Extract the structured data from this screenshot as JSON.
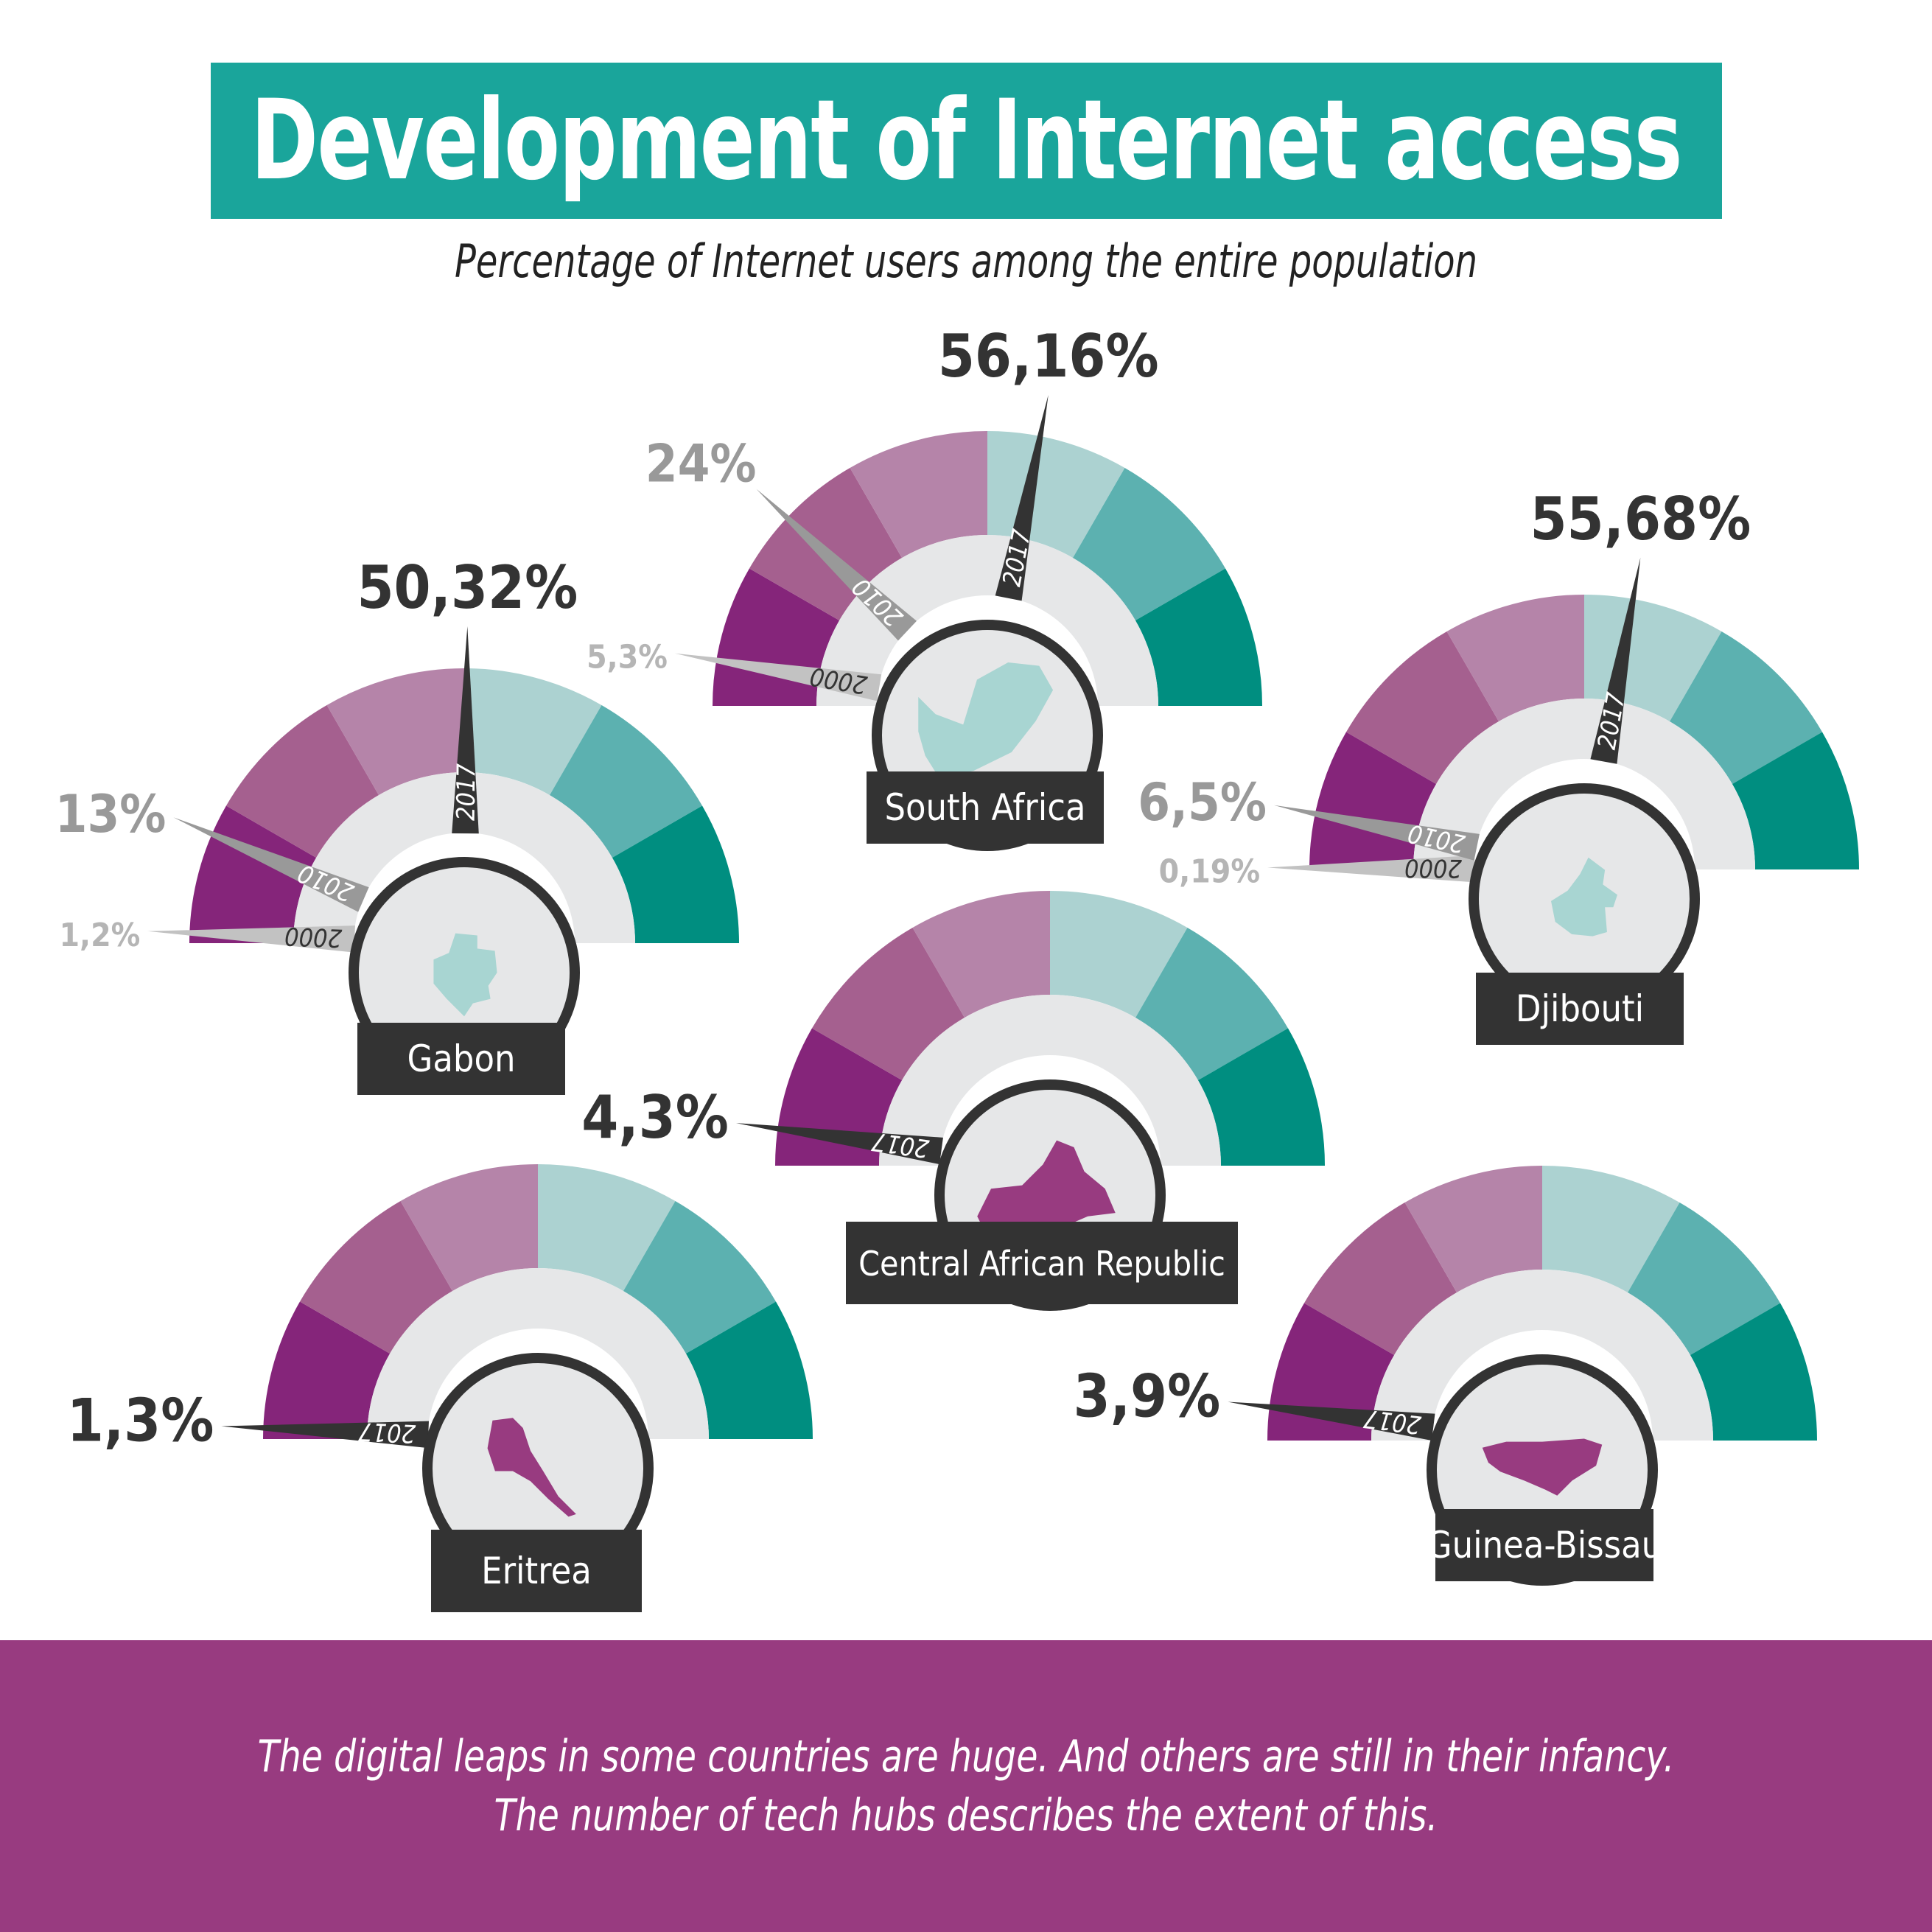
{
  "header": {
    "title": "Development of Internet access",
    "subtitle": "Percentage of Internet users among the entire population"
  },
  "colors": {
    "title_bg": "#1aa59b",
    "footer_bg": "#983b80",
    "segments": [
      "#85257a",
      "#a5608f",
      "#b584a9",
      "#acd2d1",
      "#5cb1b0",
      "#008e80"
    ],
    "inner_ring": "#e6e7e8",
    "dark": "#333333",
    "gray_2010": "#999999",
    "gray_2000": "#c2c2c2",
    "country_teal": "#a8d5d2",
    "country_purple": "#983b80"
  },
  "chart_data": {
    "type": "gauge",
    "value_unit": "%",
    "scale": [
      0,
      100
    ],
    "gauges": [
      {
        "country": "Gabon",
        "readings": [
          {
            "year": "2000",
            "value": 1.2,
            "label": "1,2%"
          },
          {
            "year": "2010",
            "value": 13,
            "label": "13%"
          },
          {
            "year": "2017",
            "value": 50.32,
            "label": "50,32%"
          }
        ]
      },
      {
        "country": "South Africa",
        "readings": [
          {
            "year": "2000",
            "value": 5.3,
            "label": "5,3%"
          },
          {
            "year": "2010",
            "value": 24,
            "label": "24%"
          },
          {
            "year": "2017",
            "value": 56.16,
            "label": "56,16%"
          }
        ]
      },
      {
        "country": "Djibouti",
        "readings": [
          {
            "year": "2000",
            "value": 0.19,
            "label": "0,19%"
          },
          {
            "year": "2010",
            "value": 6.5,
            "label": "6,5%"
          },
          {
            "year": "2017",
            "value": 55.68,
            "label": "55,68%"
          }
        ]
      },
      {
        "country": "Central African Republic",
        "readings": [
          {
            "year": "2017",
            "value": 4.3,
            "label": "4,3%"
          }
        ]
      },
      {
        "country": "Eritrea",
        "readings": [
          {
            "year": "2017",
            "value": 1.3,
            "label": "1,3%"
          }
        ]
      },
      {
        "country": "Guinea-Bissau",
        "readings": [
          {
            "year": "2017",
            "value": 3.9,
            "label": "3,9%"
          }
        ]
      }
    ]
  },
  "footer": {
    "line1": "The digital leaps in some countries are huge. And others are still in their infancy.",
    "line2": "The number of tech hubs describes the extent of this."
  }
}
